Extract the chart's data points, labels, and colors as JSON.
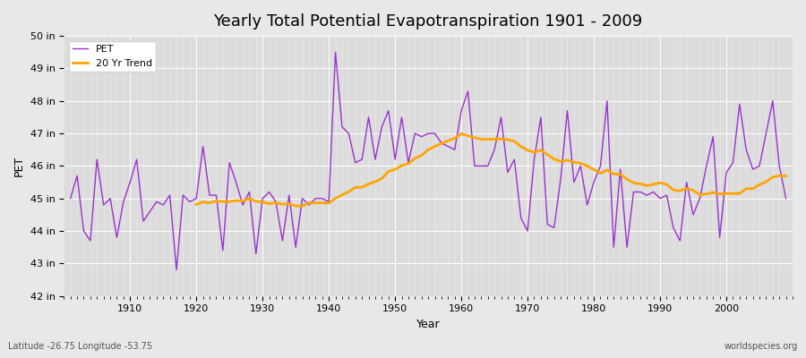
{
  "title": "Yearly Total Potential Evapotranspiration 1901 - 2009",
  "xlabel": "Year",
  "ylabel": "PET",
  "subtitle_lat": "Latitude -26.75 Longitude -53.75",
  "watermark": "worldspecies.org",
  "pet_color": "#9932CC",
  "trend_color": "#FFA500",
  "background_color": "#E8E8E8",
  "plot_bg_color": "#DCDCDC",
  "ylim": [
    42,
    50
  ],
  "ytick_labels": [
    "42 in",
    "43 in",
    "44 in",
    "45 in",
    "46 in",
    "47 in",
    "48 in",
    "49 in",
    "50 in"
  ],
  "ytick_values": [
    42,
    43,
    44,
    45,
    46,
    47,
    48,
    49,
    50
  ],
  "years": [
    1901,
    1902,
    1903,
    1904,
    1905,
    1906,
    1907,
    1908,
    1909,
    1910,
    1911,
    1912,
    1913,
    1914,
    1915,
    1916,
    1917,
    1918,
    1919,
    1920,
    1921,
    1922,
    1923,
    1924,
    1925,
    1926,
    1927,
    1928,
    1929,
    1930,
    1931,
    1932,
    1933,
    1934,
    1935,
    1936,
    1937,
    1938,
    1939,
    1940,
    1941,
    1942,
    1943,
    1944,
    1945,
    1946,
    1947,
    1948,
    1949,
    1950,
    1951,
    1952,
    1953,
    1954,
    1955,
    1956,
    1957,
    1958,
    1959,
    1960,
    1961,
    1962,
    1963,
    1964,
    1965,
    1966,
    1967,
    1968,
    1969,
    1970,
    1971,
    1972,
    1973,
    1974,
    1975,
    1976,
    1977,
    1978,
    1979,
    1980,
    1981,
    1982,
    1983,
    1984,
    1985,
    1986,
    1987,
    1988,
    1989,
    1990,
    1991,
    1992,
    1993,
    1994,
    1995,
    1996,
    1997,
    1998,
    1999,
    2000,
    2001,
    2002,
    2003,
    2004,
    2005,
    2006,
    2007,
    2008,
    2009
  ],
  "pet_values": [
    45.0,
    45.7,
    44.0,
    43.7,
    46.2,
    44.8,
    45.0,
    43.8,
    44.9,
    45.5,
    46.2,
    44.3,
    44.6,
    44.9,
    44.8,
    45.1,
    42.8,
    45.1,
    44.9,
    45.0,
    46.6,
    45.1,
    45.1,
    43.4,
    46.1,
    45.5,
    44.8,
    45.2,
    43.3,
    45.0,
    45.2,
    44.9,
    43.7,
    45.1,
    43.5,
    45.0,
    44.8,
    45.0,
    45.0,
    44.9,
    49.5,
    47.2,
    47.0,
    46.1,
    46.2,
    47.5,
    46.2,
    47.2,
    47.7,
    46.2,
    47.5,
    46.1,
    47.0,
    46.9,
    47.0,
    47.0,
    46.7,
    46.6,
    46.5,
    47.7,
    48.3,
    46.0,
    46.0,
    46.0,
    46.5,
    47.5,
    45.8,
    46.2,
    44.4,
    44.0,
    46.2,
    47.5,
    44.2,
    44.1,
    45.6,
    47.7,
    45.5,
    46.0,
    44.8,
    45.5,
    46.0,
    48.0,
    43.5,
    45.9,
    43.5,
    45.2,
    45.2,
    45.1,
    45.2,
    45.0,
    45.1,
    44.1,
    43.7,
    45.5,
    44.5,
    45.0,
    46.0,
    46.9,
    43.8,
    45.8,
    46.1,
    47.9,
    46.5,
    45.9,
    46.0,
    47.0,
    48.0,
    46.0,
    45.0
  ]
}
